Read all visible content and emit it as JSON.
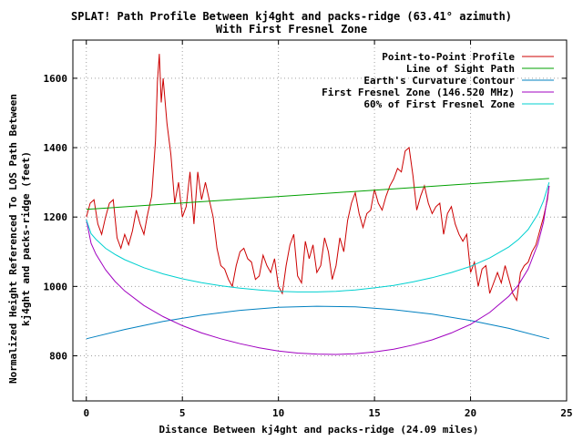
{
  "chart_data": {
    "type": "line",
    "title": "SPLAT! Path Profile Between kj4ght and packs-ridge (63.41° azimuth)",
    "subtitle": "With First Fresnel Zone",
    "xlabel": "Distance Between kj4ght and packs-ridge (24.09 miles)",
    "ylabel": "Normalized Height Referenced To LOS Path Between",
    "ylabel2": "kj4ght and packs-ridge (feet)",
    "xlim": [
      -0.7,
      25
    ],
    "ylim": [
      670,
      1710
    ],
    "x_ticks": [
      0,
      5,
      10,
      15,
      20,
      25
    ],
    "y_ticks": [
      800,
      1000,
      1200,
      1400,
      1600
    ],
    "grid": true,
    "legend_position": "top-right",
    "series": [
      {
        "name": "Point-to-Point Profile",
        "color": "#cc0000",
        "x": [
          0,
          0.2,
          0.4,
          0.6,
          0.8,
          1.0,
          1.2,
          1.4,
          1.6,
          1.8,
          2.0,
          2.2,
          2.4,
          2.6,
          2.8,
          3.0,
          3.2,
          3.4,
          3.6,
          3.7,
          3.8,
          3.9,
          4.0,
          4.2,
          4.4,
          4.6,
          4.8,
          5.0,
          5.2,
          5.4,
          5.6,
          5.8,
          6.0,
          6.2,
          6.4,
          6.6,
          6.8,
          7.0,
          7.2,
          7.4,
          7.6,
          7.8,
          8.0,
          8.2,
          8.4,
          8.6,
          8.8,
          9.0,
          9.2,
          9.4,
          9.6,
          9.8,
          10.0,
          10.2,
          10.4,
          10.6,
          10.8,
          11.0,
          11.2,
          11.4,
          11.6,
          11.8,
          12.0,
          12.2,
          12.4,
          12.6,
          12.8,
          13.0,
          13.2,
          13.4,
          13.6,
          13.8,
          14.0,
          14.2,
          14.4,
          14.6,
          14.8,
          15.0,
          15.2,
          15.4,
          15.6,
          15.8,
          16.0,
          16.2,
          16.4,
          16.6,
          16.8,
          17.0,
          17.2,
          17.4,
          17.6,
          17.8,
          18.0,
          18.2,
          18.4,
          18.6,
          18.8,
          19.0,
          19.2,
          19.4,
          19.6,
          19.8,
          20.0,
          20.2,
          20.4,
          20.6,
          20.8,
          21.0,
          21.2,
          21.4,
          21.6,
          21.8,
          22.0,
          22.2,
          22.4,
          22.6,
          22.8,
          23.0,
          23.2,
          23.4,
          23.6,
          23.8,
          24.0,
          24.09
        ],
        "y": [
          1200,
          1240,
          1250,
          1180,
          1150,
          1200,
          1240,
          1250,
          1140,
          1110,
          1150,
          1120,
          1160,
          1220,
          1180,
          1150,
          1210,
          1260,
          1420,
          1590,
          1670,
          1530,
          1600,
          1470,
          1380,
          1240,
          1300,
          1200,
          1230,
          1330,
          1180,
          1330,
          1250,
          1300,
          1250,
          1200,
          1110,
          1060,
          1050,
          1020,
          1000,
          1060,
          1100,
          1110,
          1080,
          1070,
          1020,
          1030,
          1090,
          1060,
          1040,
          1080,
          1000,
          980,
          1060,
          1120,
          1150,
          1030,
          1010,
          1130,
          1080,
          1120,
          1040,
          1060,
          1140,
          1100,
          1020,
          1060,
          1140,
          1100,
          1190,
          1240,
          1270,
          1210,
          1170,
          1210,
          1220,
          1280,
          1240,
          1220,
          1260,
          1290,
          1310,
          1340,
          1330,
          1390,
          1400,
          1320,
          1220,
          1260,
          1290,
          1240,
          1210,
          1230,
          1240,
          1150,
          1210,
          1230,
          1180,
          1150,
          1130,
          1150,
          1040,
          1070,
          1000,
          1050,
          1060,
          980,
          1010,
          1040,
          1010,
          1060,
          1020,
          980,
          960,
          1040,
          1060,
          1070,
          1100,
          1120,
          1160,
          1200,
          1250,
          1290
        ]
      },
      {
        "name": "Line of Sight Path",
        "color": "#00a000",
        "x": [
          0,
          24.09
        ],
        "y": [
          1222,
          1311
        ]
      },
      {
        "name": "Earth's Curvature Contour",
        "color": "#0080c0",
        "x": [
          0,
          2,
          4,
          6,
          8,
          10,
          12,
          14,
          16,
          18,
          20,
          22,
          24.09
        ],
        "y": [
          849,
          876,
          899,
          917,
          931,
          940,
          943,
          941,
          933,
          920,
          902,
          879,
          849
        ]
      },
      {
        "name": "First Fresnel Zone (146.520 MHz)",
        "color": "#a000c0",
        "x": [
          0,
          0.25,
          0.5,
          1,
          1.5,
          2,
          3,
          4,
          5,
          6,
          7,
          8,
          9,
          10,
          11,
          12,
          13,
          14,
          15,
          16,
          17,
          18,
          19,
          20,
          21,
          22,
          22.5,
          23,
          23.5,
          23.8,
          24.09
        ],
        "y": [
          1192,
          1124,
          1093,
          1048,
          1014,
          987,
          945,
          913,
          887,
          866,
          849,
          835,
          823,
          814,
          808,
          805,
          804,
          806,
          811,
          819,
          831,
          846,
          866,
          891,
          925,
          972,
          1005,
          1050,
          1122,
          1186,
          1290
        ]
      },
      {
        "name": "60% of First Fresnel Zone",
        "color": "#00d0d0",
        "x": [
          0,
          0.25,
          0.5,
          1,
          1.5,
          2,
          3,
          4,
          5,
          6,
          7,
          8,
          9,
          10,
          11,
          12,
          13,
          14,
          15,
          16,
          17,
          18,
          19,
          20,
          21,
          22,
          22.5,
          23,
          23.5,
          23.8,
          24.09
        ],
        "y": [
          1192,
          1152,
          1136,
          1110,
          1092,
          1077,
          1054,
          1036,
          1022,
          1011,
          1002,
          995,
          990,
          986,
          984,
          984,
          986,
          990,
          996,
          1003,
          1013,
          1025,
          1040,
          1058,
          1082,
          1114,
          1136,
          1164,
          1208,
          1247,
          1300
        ]
      }
    ]
  }
}
